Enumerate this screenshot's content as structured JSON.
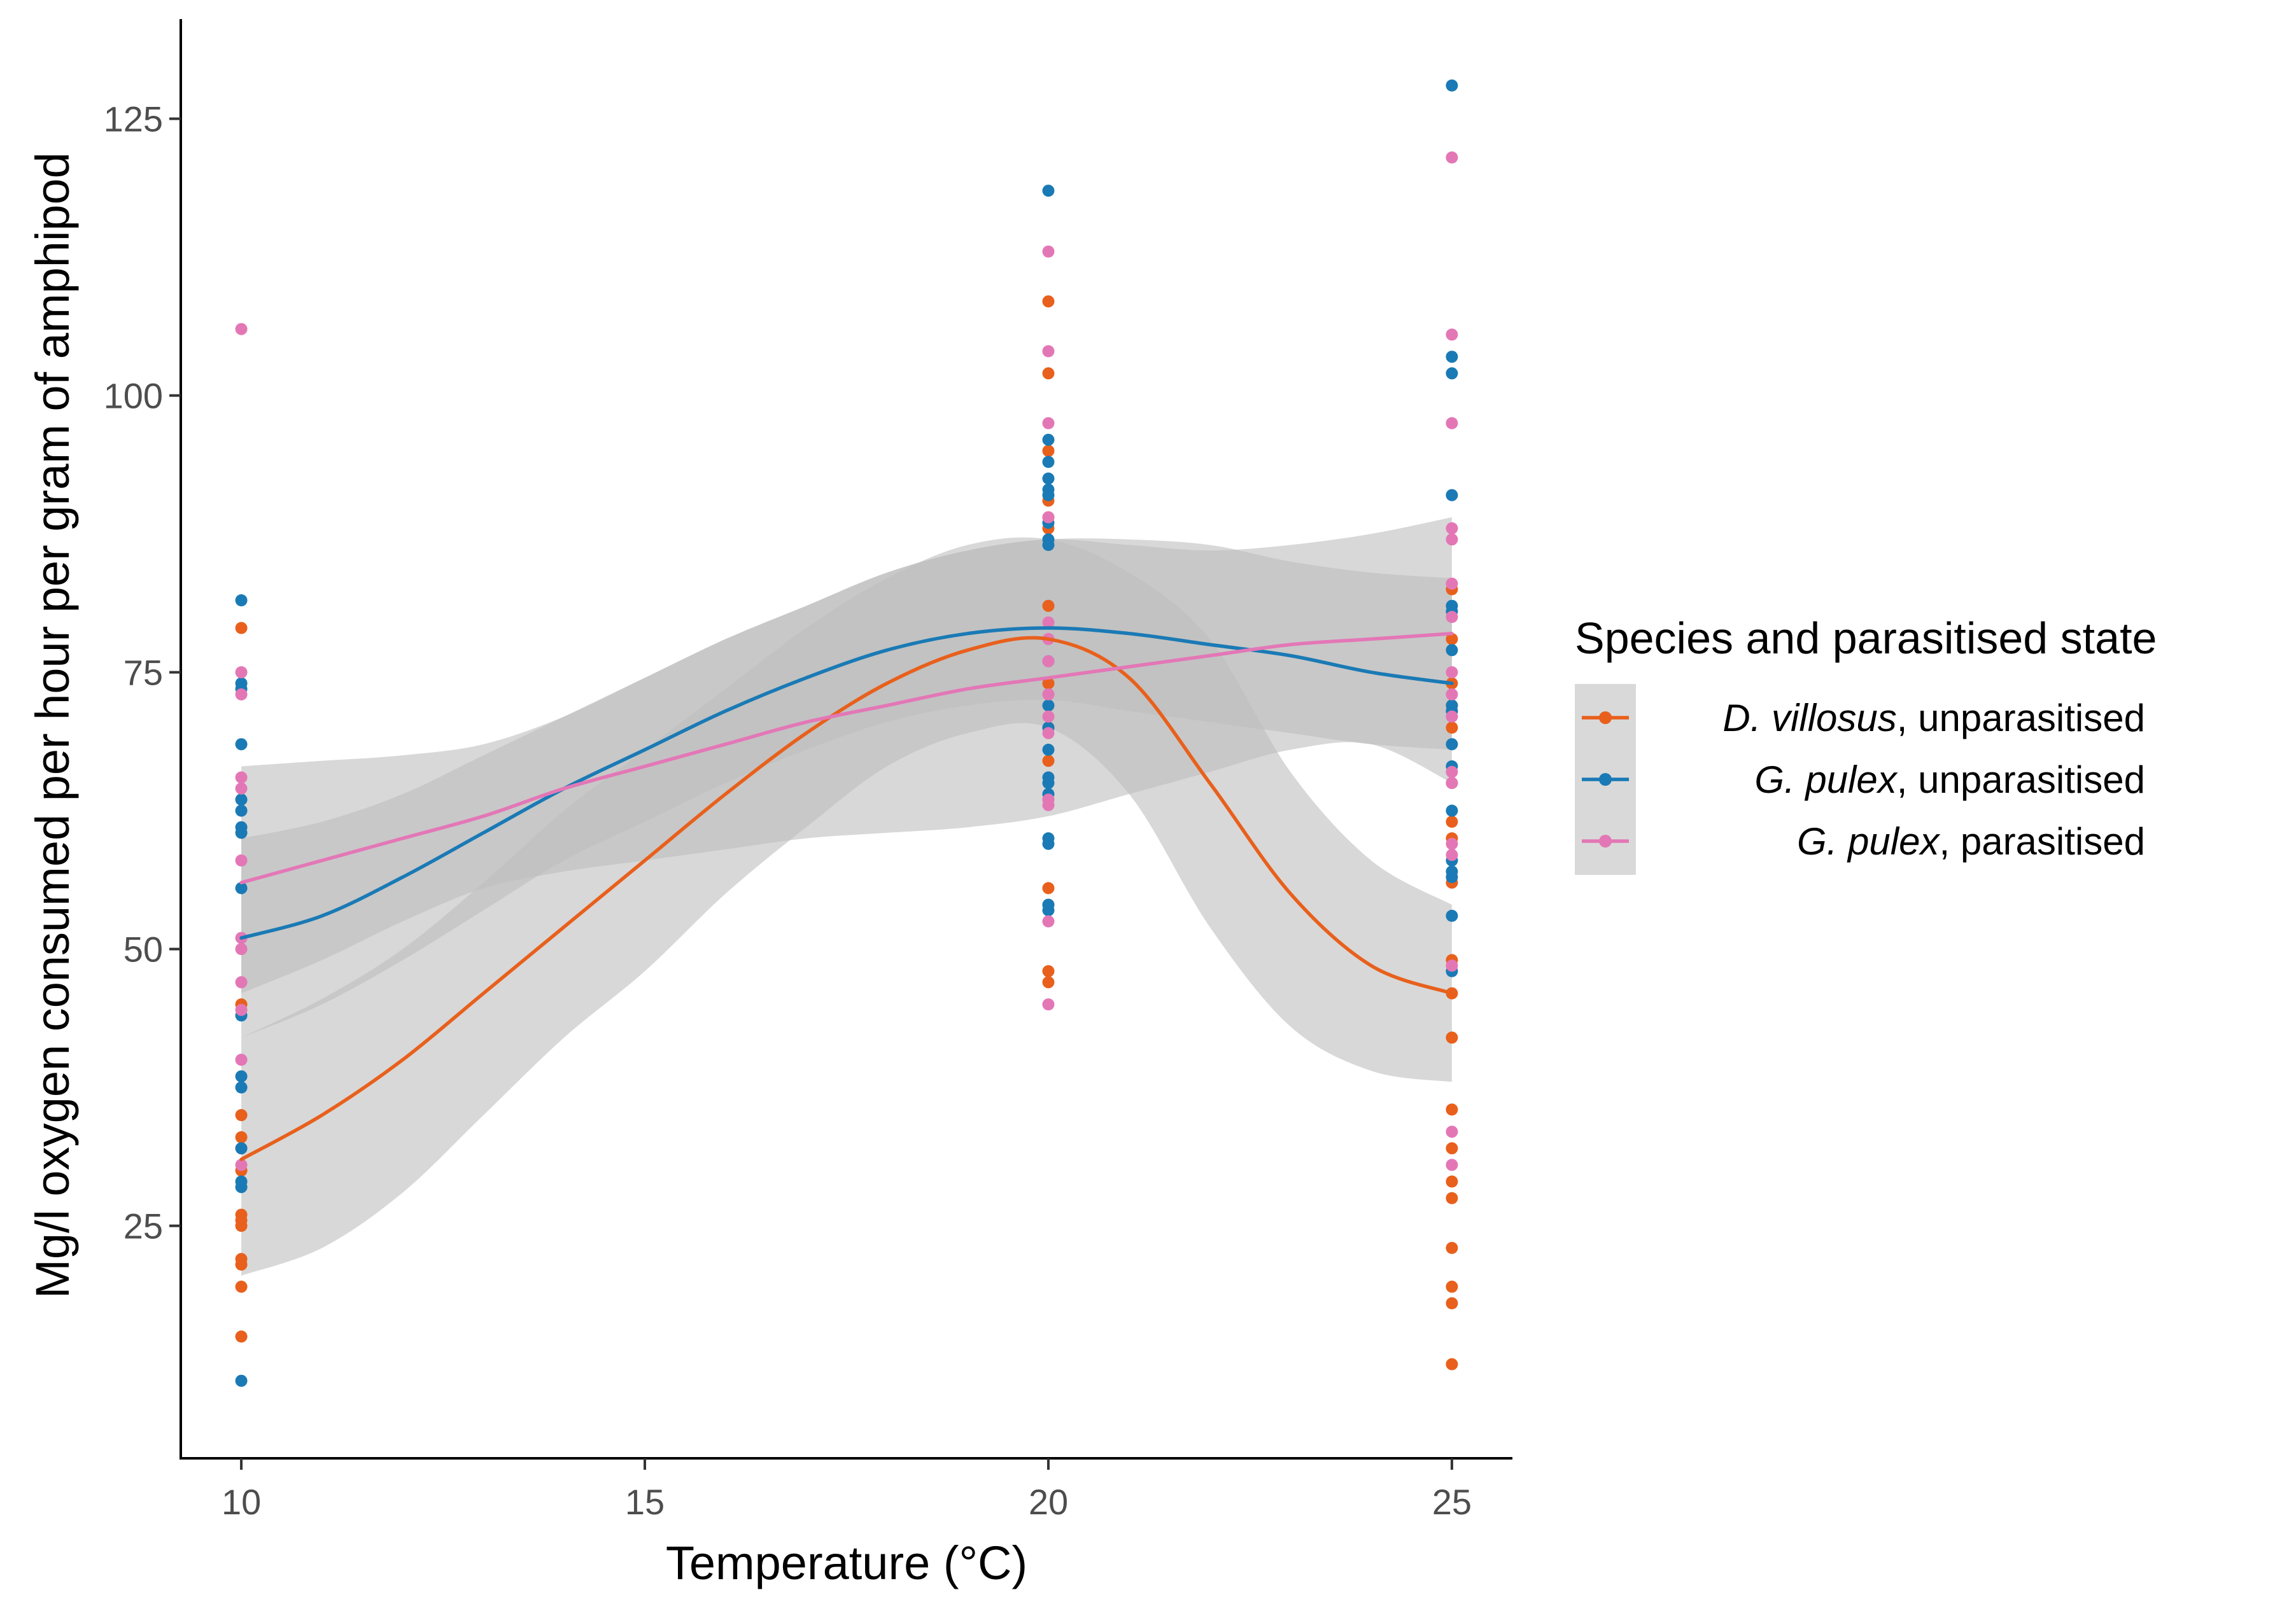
{
  "chart_data": {
    "type": "scatter",
    "title": "",
    "xlabel": "Temperature (°C)",
    "ylabel": "Mg/l oxygen consumed per hour per gram of amphipod",
    "xlim": [
      9.25,
      25.75
    ],
    "ylim": [
      4,
      134
    ],
    "x_ticks": [
      10,
      15,
      20,
      25
    ],
    "x_tick_labels": [
      "10",
      "15",
      "20",
      "25"
    ],
    "y_ticks": [
      25,
      50,
      75,
      100,
      125
    ],
    "y_tick_labels": [
      "25",
      "50",
      "75",
      "100",
      "125"
    ],
    "grid": false,
    "smoothing": "loess curves with grey confidence bands",
    "legend": {
      "title": "Species and parasitised state",
      "position": "right",
      "entries": [
        {
          "species": "D. villosus",
          "state": ", unparasitised",
          "color": "#e8601c"
        },
        {
          "species": "G. pulex",
          "state": ", unparasitised",
          "color": "#1a7ab5"
        },
        {
          "species": "G. pulex",
          "state": ", parasitised",
          "color": "#e377b6"
        }
      ]
    },
    "band_color": "#bebebe",
    "series": [
      {
        "name": "D. villosus, unparasitised",
        "color": "#e8601c",
        "points": [
          {
            "x": 10,
            "values": [
              79,
              45,
              35,
              33,
              32,
              30,
              26,
              25.5,
              25,
              22,
              21.5,
              19.5,
              15
            ]
          },
          {
            "x": 20,
            "values": [
              108.5,
              102,
              95,
              90.5,
              89,
              88,
              81,
              74,
              70,
              67,
              63.5,
              55.5,
              54,
              48,
              47
            ]
          },
          {
            "x": 25,
            "values": [
              82.5,
              78,
              74,
              72,
              70,
              65,
              61.5,
              60,
              56,
              49,
              46,
              42,
              35.5,
              32,
              29,
              27.5,
              23,
              19.5,
              18,
              12.5
            ]
          }
        ],
        "curve": {
          "x": [
            10,
            11,
            12,
            13,
            14,
            15,
            16,
            17,
            18,
            19,
            20,
            21,
            22,
            23,
            24,
            25
          ],
          "y": [
            31,
            35,
            40,
            46,
            52,
            58,
            64,
            69.5,
            74,
            77,
            78,
            74.5,
            65,
            55,
            48.5,
            46
          ]
        },
        "band": {
          "lower": [
            20.5,
            23,
            28,
            35,
            42,
            48,
            55,
            61,
            66.5,
            69.5,
            70,
            64,
            52,
            43,
            39,
            38
          ],
          "upper": [
            42,
            45.5,
            50,
            56,
            62.5,
            68,
            73.5,
            79,
            83.5,
            86.5,
            87,
            84,
            78,
            66,
            58,
            54
          ]
        }
      },
      {
        "name": "G. pulex, unparasitised",
        "color": "#1a7ab5",
        "points": [
          {
            "x": 10,
            "values": [
              81.5,
              74,
              73.5,
              68.5,
              63.5,
              62.5,
              61,
              60.5,
              55.5,
              44,
              38.5,
              37.5,
              32,
              29,
              28.5,
              11
            ]
          },
          {
            "x": 20,
            "values": [
              118.5,
              96,
              94,
              92.5,
              91.5,
              91,
              88.5,
              87,
              86.5,
              76,
              72,
              70,
              68,
              65.5,
              65,
              64,
              60,
              59.5,
              54,
              53.5
            ]
          },
          {
            "x": 25,
            "values": [
              128,
              103.5,
              102,
              91,
              81,
              80.5,
              77,
              72,
              71.5,
              68.5,
              66.5,
              62.5,
              58,
              57,
              56.5,
              53,
              48
            ]
          }
        ],
        "curve": {
          "x": [
            10,
            11,
            12,
            13,
            14,
            15,
            16,
            17,
            18,
            19,
            20,
            21,
            22,
            23,
            24,
            25
          ],
          "y": [
            51,
            53,
            56.5,
            60.5,
            64.5,
            68,
            71.5,
            74.5,
            77,
            78.5,
            79,
            78.5,
            77.5,
            76.5,
            75,
            74
          ]
        },
        "band": {
          "lower": [
            42,
            45,
            49,
            53.5,
            58,
            61.5,
            65,
            68,
            70.5,
            72,
            72.5,
            71.5,
            70.5,
            69.5,
            68.5,
            68
          ]
        },
        "band_upper": [
          60,
          61.5,
          64,
          67.5,
          71,
          74.5,
          78,
          81,
          84,
          86,
          87,
          87,
          86.5,
          85,
          84,
          83.5
        ]
      },
      {
        "name": "G. pulex, parasitised",
        "color": "#e377b6",
        "points": [
          {
            "x": 10,
            "values": [
              106,
              75,
              73,
              65.5,
              64.5,
              58,
              51,
              50,
              47,
              44.5,
              40,
              30.5
            ]
          },
          {
            "x": 20,
            "values": [
              113,
              104,
              97.5,
              89,
              79.5,
              78,
              76,
              73,
              71,
              69.5,
              63.5,
              63,
              52.5,
              45
            ]
          },
          {
            "x": 25,
            "values": [
              121.5,
              105.5,
              97.5,
              88,
              87,
              83,
              80,
              75,
              73,
              71,
              66,
              65,
              59.5,
              58.5,
              48.5,
              33.5,
              30.5
            ]
          }
        ],
        "curve": {
          "x": [
            10,
            11,
            12,
            13,
            14,
            15,
            16,
            17,
            18,
            19,
            20,
            21,
            22,
            23,
            24,
            25
          ],
          "y": [
            56,
            58,
            60,
            62,
            64.5,
            66.5,
            68.5,
            70.5,
            72,
            73.5,
            74.5,
            75.5,
            76.5,
            77.5,
            78,
            78.5
          ]
        },
        "band": {
          "lower": [
            46,
            49,
            52.5,
            55.5,
            57,
            58,
            59,
            60,
            60.5,
            61,
            62,
            64,
            66,
            68,
            68.5,
            65
          ]
        },
        "band_upper": [
          66.5,
          67,
          67.5,
          68.5,
          71,
          74.5,
          78,
          81,
          84,
          86,
          87,
          86.5,
          86,
          86.5,
          87.5,
          89
        ]
      }
    ]
  }
}
